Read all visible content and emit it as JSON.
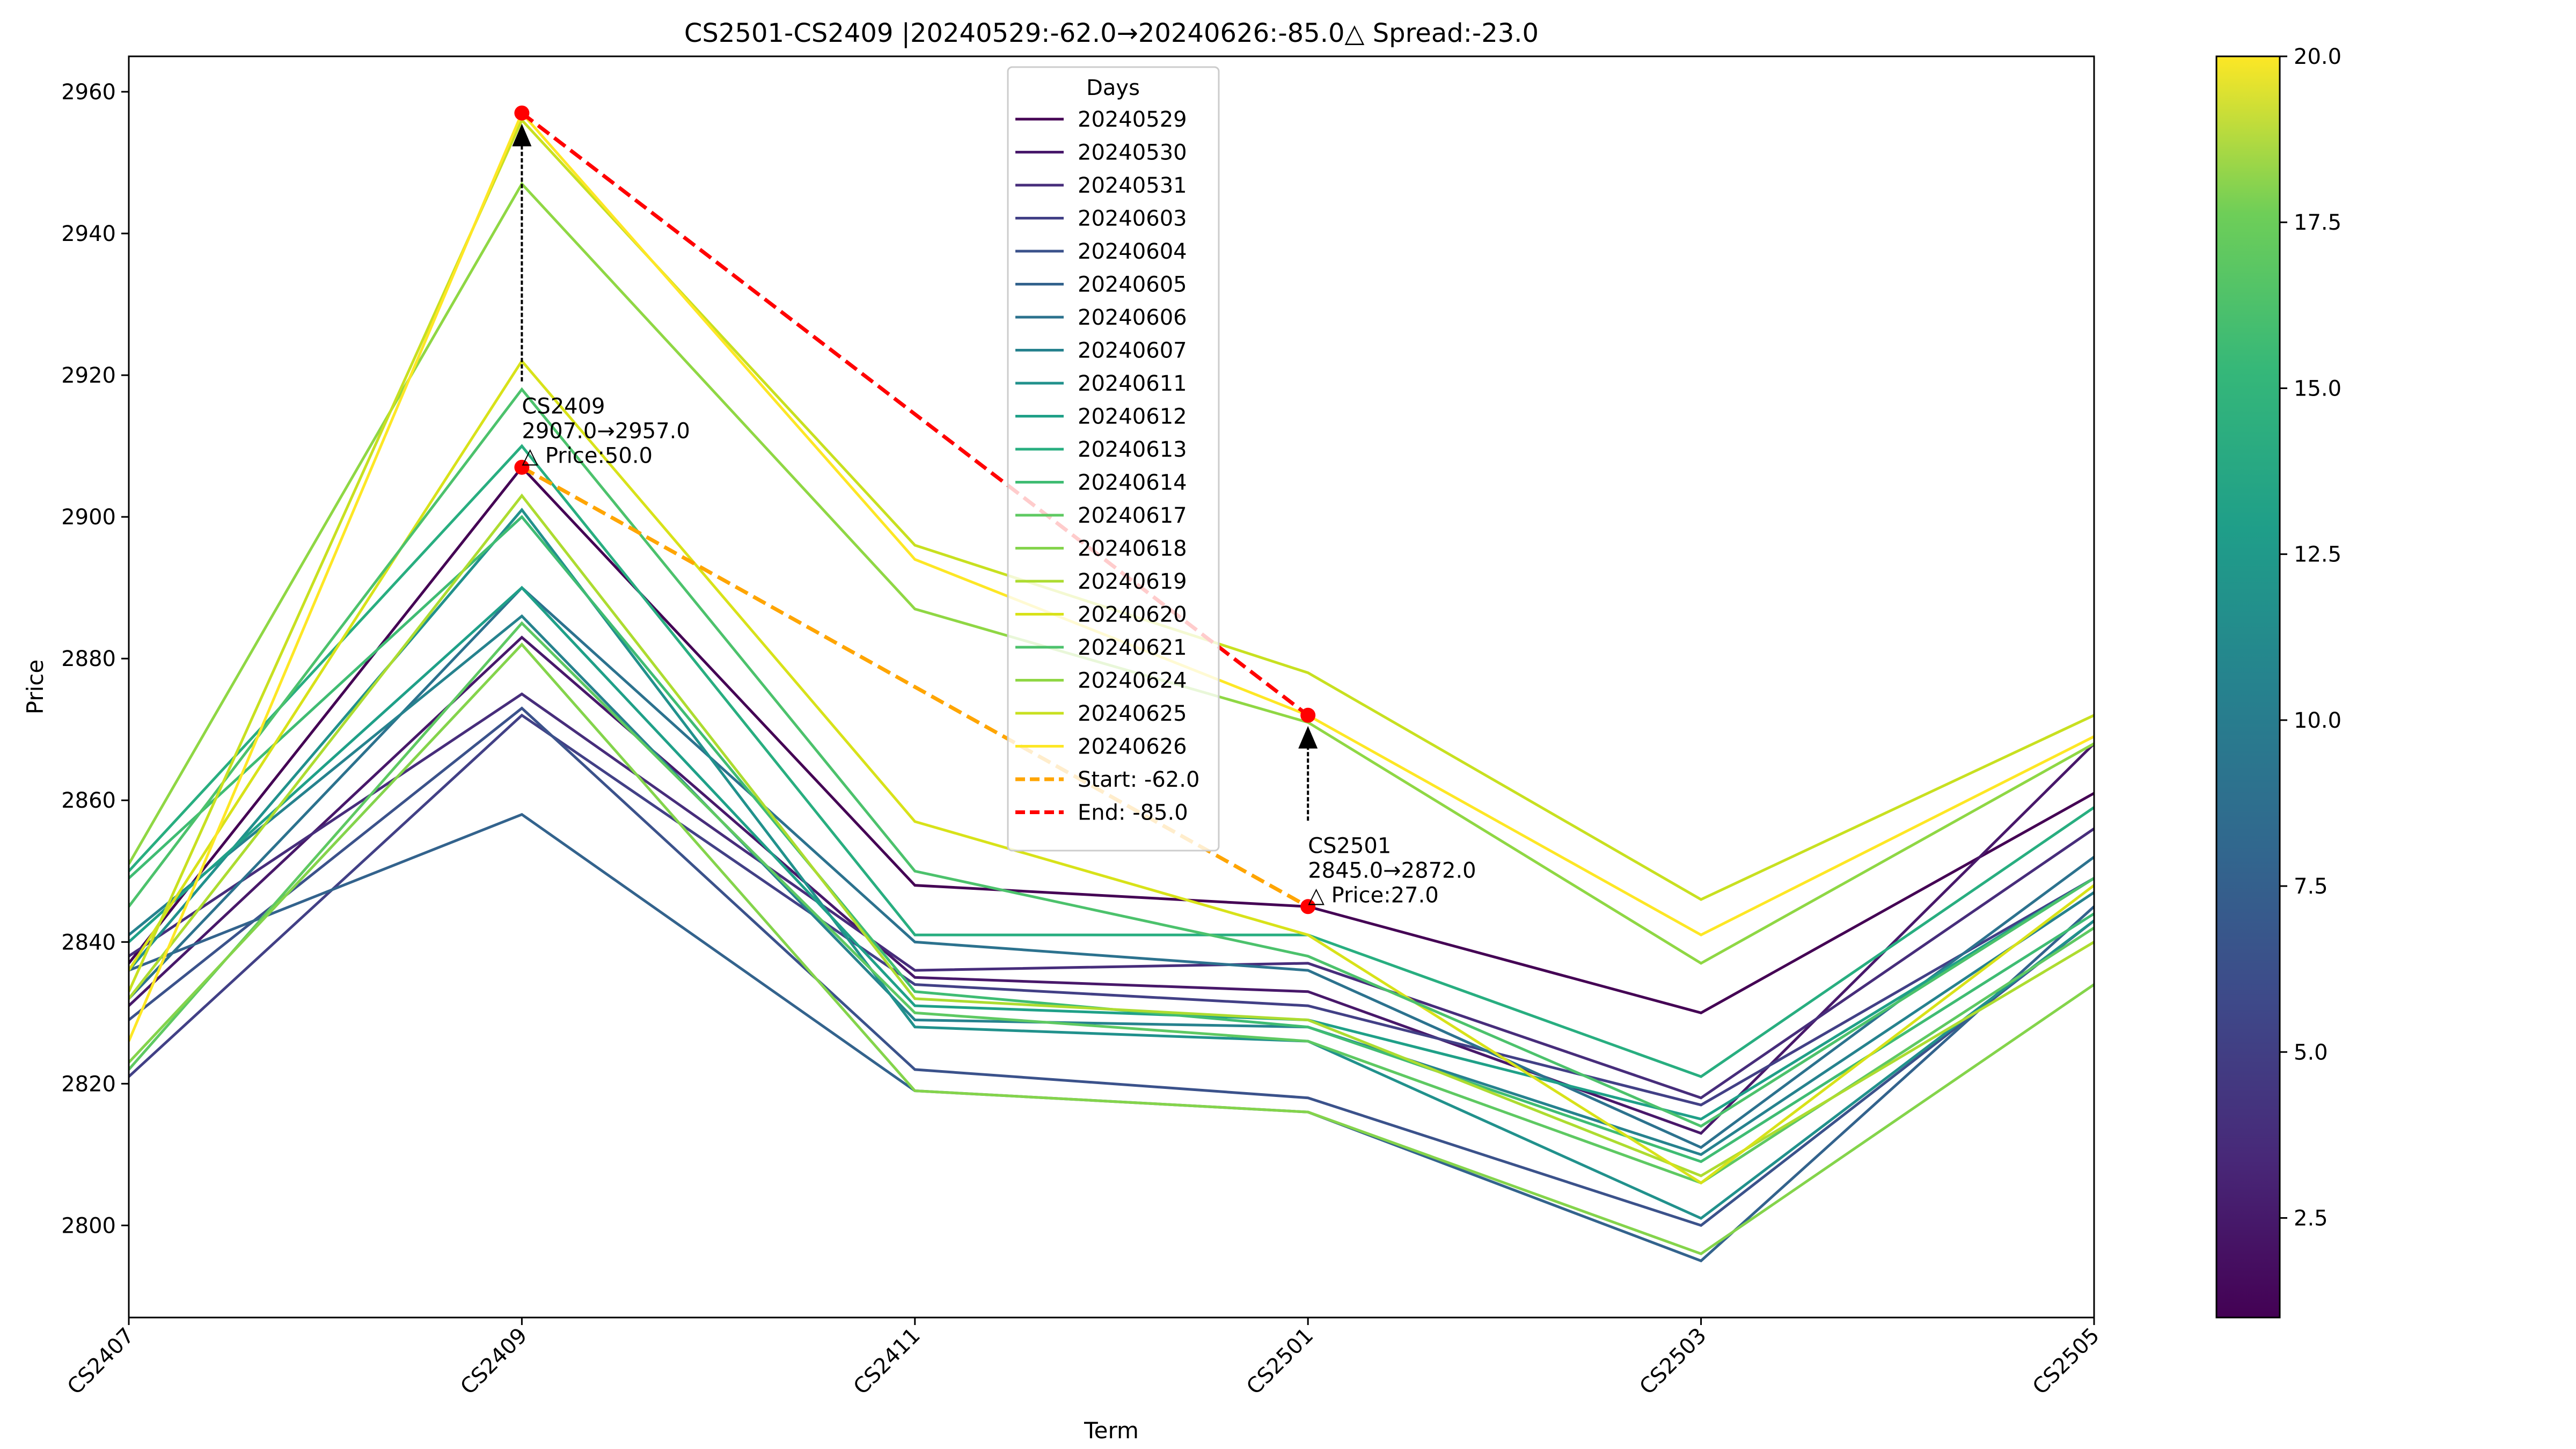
{
  "chart_data": {
    "type": "line",
    "title": "CS2501-CS2409 |20240529:-62.0→20240626:-85.0△ Spread:-23.0",
    "xlabel": "Term",
    "ylabel": "Price",
    "categories": [
      "CS2407",
      "CS2409",
      "CS2411",
      "CS2501",
      "CS2503",
      "CS2505"
    ],
    "ylim": [
      2787,
      2965
    ],
    "yticks": [
      2800,
      2820,
      2840,
      2860,
      2880,
      2900,
      2920,
      2940,
      2960
    ],
    "grid": false,
    "legend": {
      "title": "Days",
      "placement": "upper-center"
    },
    "colormap": "viridis",
    "colorbar": {
      "range": [
        1,
        20
      ],
      "ticks": [
        "2.5",
        "5.0",
        "7.5",
        "10.0",
        "12.5",
        "15.0",
        "17.5",
        "20.0"
      ]
    },
    "series": [
      {
        "name": "20240529",
        "color": "#440154",
        "values": [
          2837,
          2907,
          2848,
          2845,
          2830,
          2861
        ]
      },
      {
        "name": "20240530",
        "color": "#48186a",
        "values": [
          2831,
          2883,
          2835,
          2833,
          2813,
          2868
        ]
      },
      {
        "name": "20240531",
        "color": "#472d7b",
        "values": [
          2838,
          2875,
          2836,
          2837,
          2818,
          2856
        ]
      },
      {
        "name": "20240603",
        "color": "#424086",
        "values": [
          2821,
          2872,
          2834,
          2831,
          2817,
          2849
        ]
      },
      {
        "name": "20240604",
        "color": "#3b528b",
        "values": [
          2829,
          2873,
          2822,
          2818,
          2800,
          2843
        ]
      },
      {
        "name": "20240605",
        "color": "#33638d",
        "values": [
          2836,
          2858,
          2819,
          2816,
          2795,
          2845
        ]
      },
      {
        "name": "20240606",
        "color": "#2c728e",
        "values": [
          2832,
          2890,
          2840,
          2836,
          2811,
          2852
        ]
      },
      {
        "name": "20240607",
        "color": "#26828e",
        "values": [
          2841,
          2886,
          2829,
          2828,
          2810,
          2847
        ]
      },
      {
        "name": "20240611",
        "color": "#21918c",
        "values": [
          2836,
          2901,
          2828,
          2826,
          2801,
          2843
        ]
      },
      {
        "name": "20240612",
        "color": "#1fa088",
        "values": [
          2840,
          2890,
          2831,
          2829,
          2815,
          2849
        ]
      },
      {
        "name": "20240613",
        "color": "#28ae80",
        "values": [
          2850,
          2910,
          2841,
          2841,
          2821,
          2859
        ]
      },
      {
        "name": "20240614",
        "color": "#3fbc73",
        "values": [
          2849,
          2900,
          2833,
          2828,
          2809,
          2844
        ]
      },
      {
        "name": "20240617",
        "color": "#5ec962",
        "values": [
          2822,
          2885,
          2830,
          2826,
          2806,
          2842
        ]
      },
      {
        "name": "20240618",
        "color": "#84d44b",
        "values": [
          2823,
          2882,
          2819,
          2816,
          2796,
          2834
        ]
      },
      {
        "name": "20240619",
        "color": "#addc30",
        "values": [
          2832,
          2903,
          2832,
          2829,
          2807,
          2840
        ]
      },
      {
        "name": "20240620",
        "color": "#d8e219",
        "values": [
          2836,
          2922,
          2857,
          2841,
          2806,
          2848
        ]
      },
      {
        "name": "20240621",
        "color": "#4cc26c",
        "values": [
          2845,
          2918,
          2850,
          2838,
          2814,
          2849
        ]
      },
      {
        "name": "20240624",
        "color": "#8fd744",
        "values": [
          2851,
          2947,
          2887,
          2871,
          2837,
          2868
        ]
      },
      {
        "name": "20240625",
        "color": "#c8e020",
        "values": [
          2833,
          2956,
          2896,
          2878,
          2846,
          2872
        ]
      },
      {
        "name": "20240626",
        "color": "#fde725",
        "values": [
          2826,
          2957,
          2894,
          2872,
          2841,
          2869
        ]
      }
    ],
    "spread_lines": [
      {
        "name": "Start: -62.0",
        "color": "#ffa500",
        "dash": true,
        "x": [
          "CS2409",
          "CS2501"
        ],
        "values": [
          2907,
          2845
        ]
      },
      {
        "name": "End: -85.0",
        "color": "#ff0000",
        "dash": true,
        "x": [
          "CS2409",
          "CS2501"
        ],
        "values": [
          2957,
          2872
        ]
      }
    ],
    "annotations": [
      {
        "x": "CS2409",
        "from": 2907,
        "to": 2957,
        "lines": [
          "CS2409",
          "2907.0→2957.0",
          "△ Price:50.0"
        ]
      },
      {
        "x": "CS2501",
        "from": 2845,
        "to": 2872,
        "lines": [
          "CS2501",
          "2845.0→2872.0",
          "△ Price:27.0"
        ]
      }
    ]
  }
}
